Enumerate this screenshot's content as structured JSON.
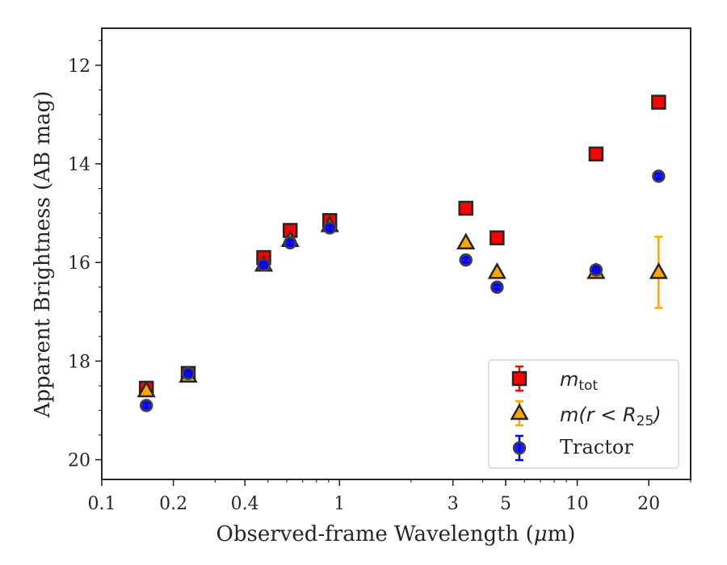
{
  "chart_data": {
    "type": "scatter",
    "xlabel_prefix": "Observed-frame Wavelength (",
    "xlabel_mu": "μ",
    "xlabel_suffix": "m)",
    "ylabel": "Apparent Brightness (AB mag)",
    "xscale": "log",
    "xlim": [
      0.1,
      30
    ],
    "ylim": [
      20.4,
      11.25
    ],
    "y_inverted": true,
    "grid": false,
    "legend_position": "lower-right",
    "x_ticks": [
      {
        "value": 0.1,
        "label": "0.1"
      },
      {
        "value": 0.2,
        "label": "0.2"
      },
      {
        "value": 0.4,
        "label": "0.4"
      },
      {
        "value": 1,
        "label": "1"
      },
      {
        "value": 3,
        "label": "3"
      },
      {
        "value": 5,
        "label": "5"
      },
      {
        "value": 10,
        "label": "10"
      },
      {
        "value": 20,
        "label": "20"
      }
    ],
    "y_ticks": [
      {
        "value": 12,
        "label": "12"
      },
      {
        "value": 14,
        "label": "14"
      },
      {
        "value": 16,
        "label": "16"
      },
      {
        "value": 18,
        "label": "18"
      },
      {
        "value": 20,
        "label": "20"
      }
    ],
    "series": [
      {
        "key": "mtot",
        "legend_main": "m",
        "legend_sub": "tot",
        "marker": "square",
        "color": "#ff0000",
        "error_color": "#ff0000",
        "x": [
          0.154,
          0.231,
          0.48,
          0.62,
          0.91,
          3.4,
          4.6,
          12,
          22
        ],
        "y": [
          18.55,
          18.25,
          15.9,
          15.35,
          15.15,
          14.9,
          15.5,
          13.8,
          12.75
        ],
        "yerr": [
          0.05,
          0.05,
          0.05,
          0.05,
          0.05,
          0.05,
          0.05,
          0.05,
          0.05
        ]
      },
      {
        "key": "mr25",
        "legend_main": "m(r < R",
        "legend_sub": "25",
        "legend_end": ")",
        "marker": "triangle",
        "color": "#ffa500",
        "error_color": "#ffa500",
        "x": [
          0.154,
          0.231,
          0.48,
          0.62,
          0.91,
          3.4,
          4.6,
          12,
          22
        ],
        "y": [
          18.6,
          18.3,
          16.05,
          15.55,
          15.25,
          15.6,
          16.2,
          16.2,
          16.2
        ],
        "yerr": [
          0.05,
          0.05,
          0.05,
          0.05,
          0.05,
          0.05,
          0.05,
          0.05,
          0.72
        ]
      },
      {
        "key": "tractor",
        "legend_label": "Tractor",
        "marker": "circle",
        "color": "#0000ff",
        "error_color": "#0000ff",
        "x": [
          0.154,
          0.231,
          0.48,
          0.62,
          0.91,
          3.4,
          4.6,
          12,
          22
        ],
        "y": [
          18.9,
          18.25,
          16.05,
          15.6,
          15.3,
          15.95,
          16.5,
          16.15,
          14.25
        ],
        "yerr": [
          0.05,
          0.05,
          0.05,
          0.05,
          0.05,
          0.05,
          0.05,
          0.05,
          0.05
        ]
      }
    ]
  }
}
